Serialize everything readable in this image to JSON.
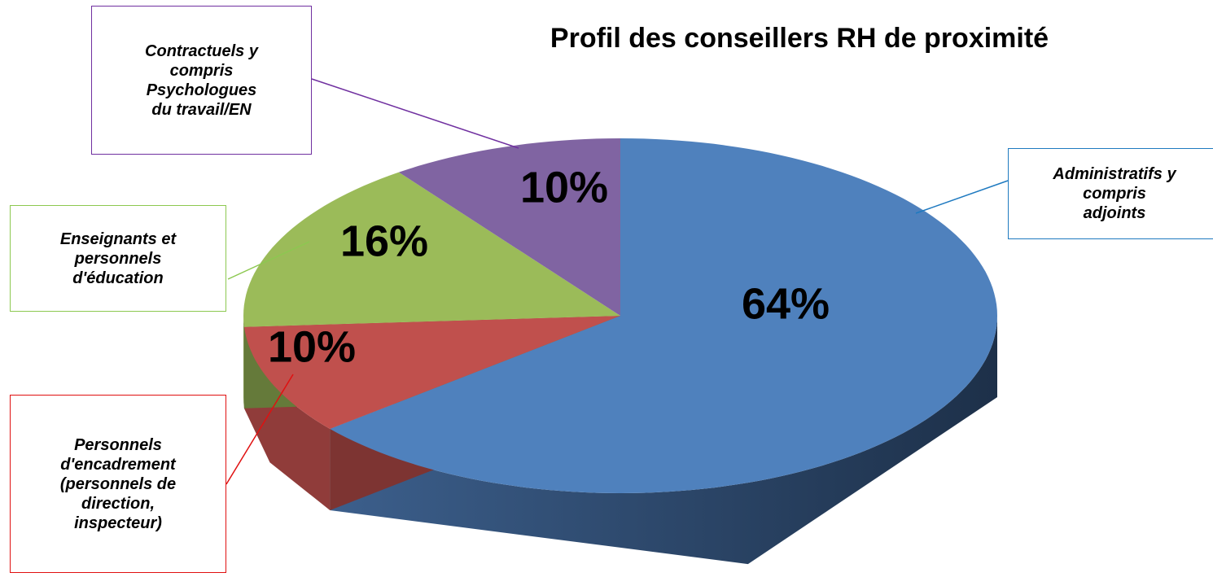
{
  "chart_data": {
    "type": "pie",
    "title": "Profil des conseillers RH de proximité",
    "categories": [
      "Administratifs y\ncompris\nadjoints",
      "Personnels\nd'encadrement\n(personnels de\ndirection,\ninspecteur)",
      "Enseignants et\npersonnels\nd'éducation",
      "Contractuels y\ncompris\nPsychologues\ndu travail/EN"
    ],
    "values": [
      64,
      10,
      16,
      10
    ],
    "value_labels": [
      "64%",
      "10%",
      "16%",
      "10%"
    ],
    "colors": [
      "#4f81bd",
      "#c0504d",
      "#9bbb59",
      "#8064a2"
    ],
    "label_border_colors": [
      "#1f7ac0",
      "#e01010",
      "#8cc850",
      "#7030a0"
    ]
  }
}
